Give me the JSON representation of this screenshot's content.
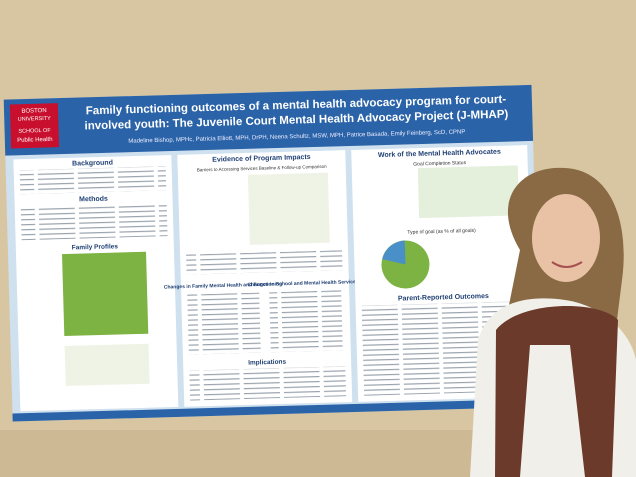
{
  "logo": {
    "line1": "BOSTON",
    "line2": "UNIVERSITY",
    "line3": "SCHOOL OF",
    "line4": "Public Health"
  },
  "poster": {
    "title_line1": "Family functioning outcomes of a mental health advocacy program for court-",
    "title_line2": "involved youth: The Juvenile Court Mental Health Advocacy Project (J-MHAP)",
    "authors": "Madeline Bishop, MPHc, Patricia Elliott, MPH, DrPH, Neena Schultz, MSW, MPH, Patrice Basada, Emily Feinberg, ScD, CPNP"
  },
  "sections": {
    "background": "Background",
    "methods": "Methods",
    "family_profiles": "Family Profiles",
    "evidence": "Evidence of Program Impacts",
    "barriers": "Barriers to Accessing Services Baseline & Follow-up Comparison",
    "changes_family": "Changes in Family Mental Health and Functioning",
    "changes_school": "Changes in School and Mental Health Service Use",
    "implications": "Implications",
    "work": "Work of the Mental Health Advocates",
    "goal_status": "Goal Completion Status",
    "goal_type": "Type of goal (as % of all goals)",
    "parent_outcomes": "Parent-Reported Outcomes"
  }
}
